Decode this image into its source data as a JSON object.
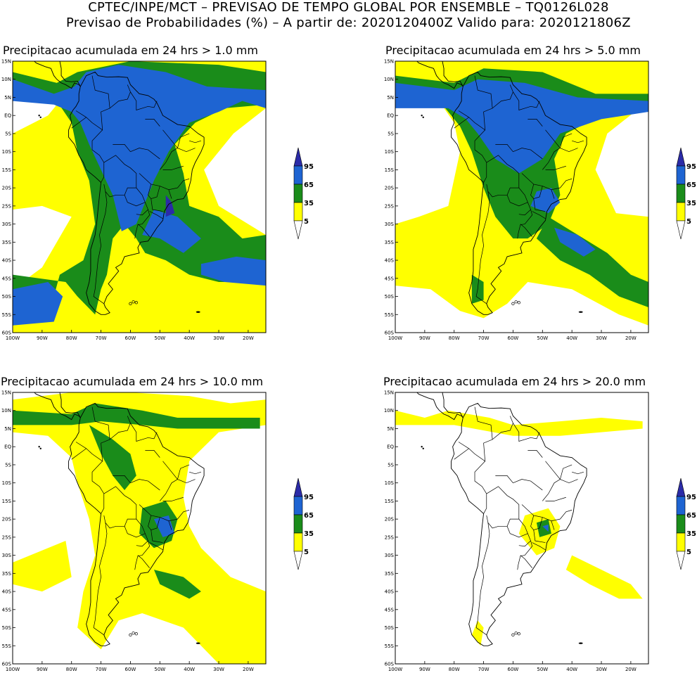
{
  "header": {
    "line1": "CPTEC/INPE/MCT – PREVISAO DE TEMPO GLOBAL POR ENSEMBLE – TQ0126L028",
    "line2": "Previsao de Probabilidades (%) –   A partir de: 2020120400Z   Valido para: 2020121806Z"
  },
  "panels": [
    {
      "title": "Precipitacao acumulada em 24 hrs > 1.0 mm",
      "intensity": 4
    },
    {
      "title": "Precipitacao acumulada em 24 hrs > 5.0 mm",
      "intensity": 3
    },
    {
      "title": "Precipitacao acumulada em 24 hrs > 10.0 mm",
      "intensity": 2
    },
    {
      "title": "Precipitacao acumulada em 24 hrs > 20.0 mm",
      "intensity": 1
    }
  ],
  "lat_ticks": [
    "15N",
    "10N",
    "5N",
    "EQ",
    "5S",
    "10S",
    "15S",
    "20S",
    "25S",
    "30S",
    "35S",
    "40S",
    "45S",
    "50S",
    "55S",
    "60S"
  ],
  "lon_ticks": [
    "100W",
    "90W",
    "80W",
    "70W",
    "60W",
    "50W",
    "40W",
    "30W",
    "20W"
  ],
  "legend": {
    "levels": [
      "95",
      "65",
      "35",
      "5"
    ],
    "colors": {
      "lt5": "#ffffff",
      "5_35": "#ffff00",
      "35_65": "#1a8c1a",
      "65_95": "#1e64d2",
      "gt95": "#2b2ba8"
    }
  }
}
